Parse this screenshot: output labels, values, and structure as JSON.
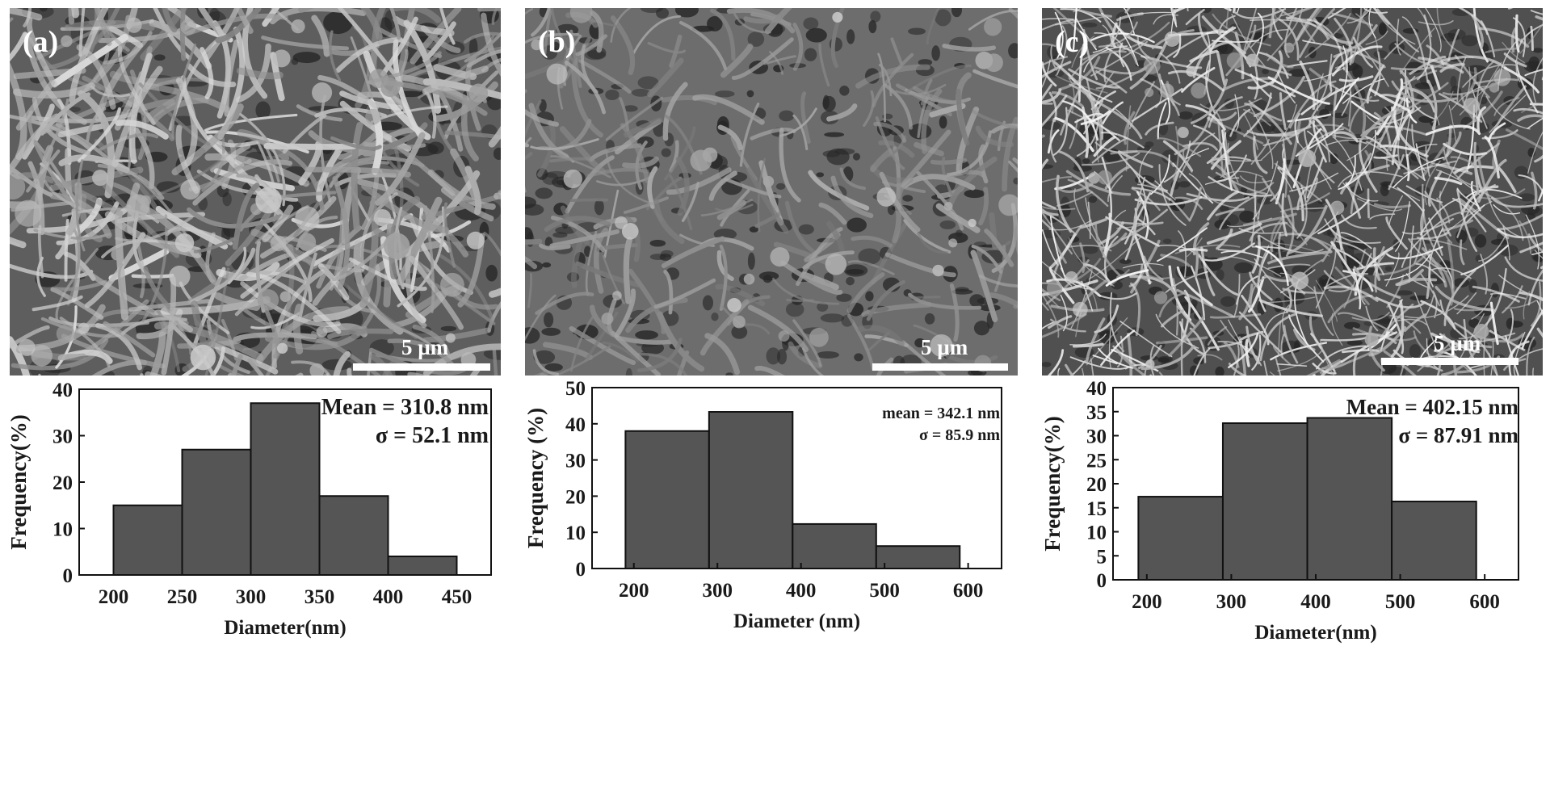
{
  "panels": [
    {
      "label": "(a)",
      "scale_bar": "5 µm",
      "annotation": [
        "Mean = 310.8 nm",
        "σ = 52.1 nm"
      ],
      "chart_data": {
        "type": "bar",
        "xlabel": "Diameter(nm)",
        "ylabel": "Frequency(%)",
        "xlim": [
          175,
          475
        ],
        "ylim": [
          0,
          40
        ],
        "xticks": [
          200,
          250,
          300,
          350,
          400,
          450
        ],
        "yticks": [
          0,
          10,
          20,
          30,
          40
        ],
        "bins": [
          [
            200,
            250
          ],
          [
            250,
            300
          ],
          [
            300,
            350
          ],
          [
            350,
            400
          ],
          [
            400,
            450
          ]
        ],
        "values": [
          15,
          27,
          37,
          17,
          4
        ]
      }
    },
    {
      "label": "(b)",
      "scale_bar": "5 µm",
      "annotation": [
        "mean = 342.1 nm",
        "σ = 85.9 nm"
      ],
      "chart_data": {
        "type": "bar",
        "xlabel": "Diameter (nm)",
        "ylabel": "Frequency (%)",
        "xlim": [
          150,
          640
        ],
        "ylim": [
          0,
          50
        ],
        "xticks": [
          200,
          300,
          400,
          500,
          600
        ],
        "yticks": [
          0,
          10,
          20,
          30,
          40,
          50
        ],
        "bins": [
          [
            190,
            290
          ],
          [
            290,
            390
          ],
          [
            390,
            490
          ],
          [
            490,
            590
          ]
        ],
        "values": [
          38,
          43.3,
          12.3,
          6.2
        ]
      }
    },
    {
      "label": "(c)",
      "scale_bar": "5 µm",
      "annotation": [
        "Mean = 402.15 nm",
        "σ = 87.91 nm"
      ],
      "chart_data": {
        "type": "bar",
        "xlabel": "Diameter(nm)",
        "ylabel": "Frequency(%)",
        "xlim": [
          160,
          640
        ],
        "ylim": [
          0,
          40
        ],
        "xticks": [
          200,
          300,
          400,
          500,
          600
        ],
        "yticks": [
          0,
          5,
          10,
          15,
          20,
          25,
          30,
          35,
          40
        ],
        "bins": [
          [
            190,
            290
          ],
          [
            290,
            390
          ],
          [
            390,
            490
          ],
          [
            490,
            590
          ]
        ],
        "values": [
          17.3,
          32.6,
          33.7,
          16.3
        ]
      }
    }
  ]
}
